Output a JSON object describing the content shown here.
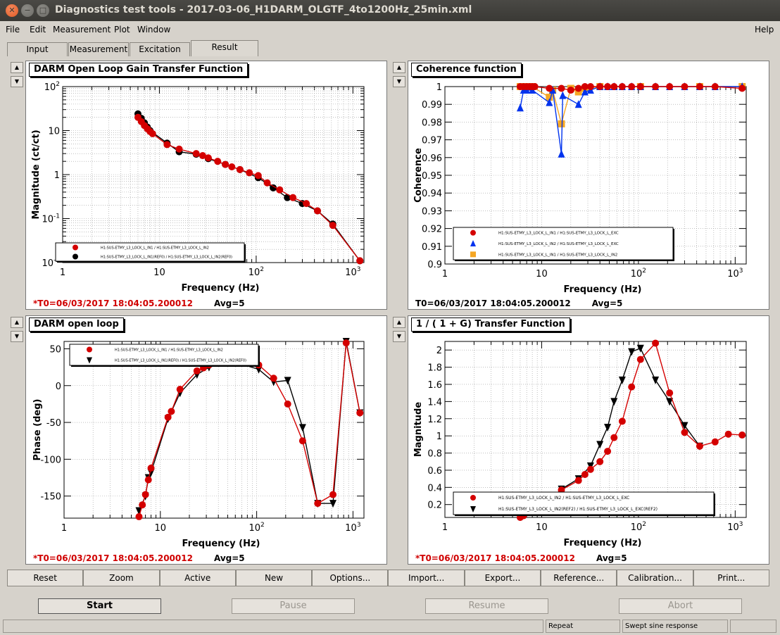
{
  "window": {
    "title": "Diagnostics test tools - 2017-03-06_H1DARM_OLGTF_4to1200Hz_25min.xml"
  },
  "menu": {
    "file": "File",
    "edit": "Edit",
    "measurement": "Measurement",
    "plot": "Plot",
    "window": "Window",
    "help": "Help"
  },
  "tabs": [
    "Input",
    "Measurement",
    "Excitation",
    "Result"
  ],
  "panels": {
    "tl": {
      "title": "DARM Open Loop Gain Transfer Function",
      "xlabel": "Frequency (Hz)",
      "ylabel": "Magnitude (ct/ct)",
      "t0": "*T0=06/03/2017 18:04:05.200012",
      "avg": "Avg=5",
      "legend": [
        "H1:SUS-ETMY_L3_LOCK_L_IN1 / H1:SUS-ETMY_L3_LOCK_L_IN2",
        "H1:SUS-ETMY_L3_LOCK_L_IN1(REF0) / H1:SUS-ETMY_L3_LOCK_L_IN2(REF0)"
      ]
    },
    "tr": {
      "title": "Coherence function",
      "xlabel": "Frequency (Hz)",
      "ylabel": "Coherence",
      "t0": "T0=06/03/2017 18:04:05.200012",
      "avg": "Avg=5",
      "legend": [
        "H1:SUS-ETMY_L3_LOCK_L_IN1 / H1:SUS-ETMY_L3_LOCK_L_EXC",
        "H1:SUS-ETMY_L3_LOCK_L_IN2 / H1:SUS-ETMY_L3_LOCK_L_EXC",
        "H1:SUS-ETMY_L3_LOCK_L_IN1 / H1:SUS-ETMY_L3_LOCK_L_IN2"
      ]
    },
    "bl": {
      "title": "DARM open loop",
      "xlabel": "Frequency (Hz)",
      "ylabel": "Phase (deg)",
      "t0": "*T0=06/03/2017 18:04:05.200012",
      "avg": "Avg=5",
      "legend": [
        "H1:SUS-ETMY_L3_LOCK_L_IN1 / H1:SUS-ETMY_L3_LOCK_L_IN2",
        "H1:SUS-ETMY_L3_LOCK_L_IN1(REF0) / H1:SUS-ETMY_L3_LOCK_L_IN2(REF0)"
      ]
    },
    "br": {
      "title": "1 / ( 1 + G) Transfer Function",
      "xlabel": "Frequency (Hz)",
      "ylabel": "Magnitude",
      "t0": "*T0=06/03/2017 18:04:05.200012",
      "avg": "Avg=5",
      "legend": [
        "H1:SUS-ETMY_L3_LOCK_L_IN2 / H1:SUS-ETMY_L3_LOCK_L_EXC",
        "H1:SUS-ETMY_L3_LOCK_L_IN2(REF2) / H1:SUS-ETMY_L3_LOCK_L_EXC(REF2)"
      ]
    }
  },
  "buttons": [
    "Reset",
    "Zoom",
    "Active",
    "New",
    "Options...",
    "Import...",
    "Export...",
    "Reference...",
    "Calibration...",
    "Print..."
  ],
  "big_buttons": [
    "Start",
    "Pause",
    "Resume",
    "Abort"
  ],
  "status": {
    "repeat": "Repeat",
    "mode": "Swept sine response"
  },
  "colors": {
    "red": "#d40000",
    "black": "#000000",
    "blue": "#0033ee",
    "orange": "#f5a623",
    "titlebar": "#3c3b37"
  },
  "chart_data": [
    {
      "id": "tl",
      "type": "scatter",
      "title": "DARM Open Loop Gain Transfer Function",
      "xlabel": "Frequency (Hz)",
      "ylabel": "Magnitude (ct/ct)",
      "xscale": "log",
      "yscale": "log",
      "xlim": [
        1,
        1300
      ],
      "ylim": [
        0.01,
        100
      ],
      "xticks": [
        [
          "1",
          "1"
        ],
        [
          "10",
          "10"
        ],
        [
          "100",
          "10^2"
        ],
        [
          "1000",
          "10^3"
        ]
      ],
      "yticks": [
        [
          "0.01",
          "10^-2"
        ],
        [
          "0.1",
          "10^-1"
        ],
        [
          "1",
          "1"
        ],
        [
          "10",
          "10"
        ],
        [
          "100",
          "10^2"
        ]
      ],
      "series": [
        {
          "name": "H1:SUS-ETMY_L3_LOCK_L_IN1 / H1:SUS-ETMY_L3_LOCK_L_IN2",
          "color": "#d40000",
          "marker": "circle",
          "x": [
            6,
            6.5,
            7,
            7.5,
            8,
            8.5,
            12,
            16,
            24,
            28,
            32,
            40,
            48,
            56,
            68,
            85,
            105,
            130,
            175,
            240,
            330,
            430,
            620,
            1180
          ],
          "y": [
            20,
            16,
            13,
            11,
            9.5,
            8.5,
            4.8,
            3.8,
            3.0,
            2.7,
            2.4,
            2.0,
            1.7,
            1.5,
            1.3,
            1.1,
            0.95,
            0.65,
            0.45,
            0.3,
            0.22,
            0.15,
            0.07,
            0.011
          ]
        },
        {
          "name": "H1:SUS-ETMY_L3_LOCK_L_IN1(REF0) / H1:SUS-ETMY_L3_LOCK_L_IN2(REF0)",
          "color": "#000000",
          "marker": "circle",
          "x": [
            6,
            6.5,
            7,
            7.5,
            8,
            12,
            16,
            24,
            32,
            48,
            68,
            105,
            150,
            210,
            300,
            430,
            620,
            1180
          ],
          "y": [
            24,
            19,
            15,
            12,
            10,
            5.2,
            3.3,
            2.9,
            2.3,
            1.7,
            1.3,
            0.85,
            0.5,
            0.3,
            0.22,
            0.15,
            0.075,
            0.011
          ]
        }
      ]
    },
    {
      "id": "tr",
      "type": "scatter",
      "title": "Coherence function",
      "xlabel": "Frequency (Hz)",
      "ylabel": "Coherence",
      "xscale": "log",
      "yscale": "linear",
      "xlim": [
        1,
        1300
      ],
      "ylim": [
        0.9,
        1.0
      ],
      "xticks": [
        [
          "1",
          "1"
        ],
        [
          "10",
          "10"
        ],
        [
          "100",
          "10^2"
        ],
        [
          "1000",
          "10^3"
        ]
      ],
      "yticks": [
        [
          "0.9",
          "0.9"
        ],
        [
          "0.91",
          "0.91"
        ],
        [
          "0.92",
          "0.92"
        ],
        [
          "0.93",
          "0.93"
        ],
        [
          "0.94",
          "0.94"
        ],
        [
          "0.95",
          "0.95"
        ],
        [
          "0.96",
          "0.96"
        ],
        [
          "0.97",
          "0.97"
        ],
        [
          "0.98",
          "0.98"
        ],
        [
          "0.99",
          "0.99"
        ],
        [
          "1",
          "1"
        ]
      ],
      "series": [
        {
          "name": "H1:SUS-ETMY_L3_LOCK_L_IN1 / H1:SUS-ETMY_L3_LOCK_L_EXC",
          "color": "#d40000",
          "marker": "circle",
          "x": [
            6,
            6.5,
            7,
            7.5,
            8,
            8.5,
            12,
            16,
            20,
            24,
            28,
            32,
            40,
            48,
            56,
            68,
            85,
            105,
            150,
            210,
            300,
            430,
            620,
            1180
          ],
          "y": [
            1,
            1,
            1,
            1,
            1,
            1,
            0.999,
            0.999,
            0.998,
            0.999,
            1,
            1,
            1,
            1,
            1,
            1,
            1,
            1,
            1,
            1,
            1,
            1,
            1,
            0.999
          ]
        },
        {
          "name": "H1:SUS-ETMY_L3_LOCK_L_IN2 / H1:SUS-ETMY_L3_LOCK_L_EXC",
          "color": "#0033ee",
          "marker": "triangle",
          "x": [
            6,
            6.5,
            7,
            8,
            12,
            13,
            16,
            16.5,
            24,
            28,
            32,
            40,
            48,
            56,
            68,
            85,
            105,
            150,
            210,
            300,
            430,
            620,
            1180
          ],
          "y": [
            0.988,
            0.998,
            0.998,
            0.998,
            0.991,
            0.998,
            0.962,
            0.995,
            0.99,
            0.997,
            0.998,
            1,
            1,
            1,
            1,
            1,
            1,
            1,
            1,
            1,
            1,
            1,
            1
          ]
        },
        {
          "name": "H1:SUS-ETMY_L3_LOCK_L_IN1 / H1:SUS-ETMY_L3_LOCK_L_IN2",
          "color": "#f5a623",
          "marker": "square",
          "x": [
            6,
            7,
            8,
            12,
            13,
            16,
            20,
            24,
            28,
            40,
            105,
            430,
            1180
          ],
          "y": [
            1,
            1,
            1,
            0.994,
            0.998,
            0.979,
            0.999,
            0.997,
            0.999,
            1,
            1,
            1,
            1
          ]
        }
      ]
    },
    {
      "id": "bl",
      "type": "line",
      "title": "DARM open loop",
      "xlabel": "Frequency (Hz)",
      "ylabel": "Phase (deg)",
      "xscale": "log",
      "yscale": "linear",
      "xlim": [
        1,
        1300
      ],
      "ylim": [
        -180,
        60
      ],
      "xticks": [
        [
          "1",
          "1"
        ],
        [
          "10",
          "10"
        ],
        [
          "100",
          "10^2"
        ],
        [
          "1000",
          "10^3"
        ]
      ],
      "yticks": [
        [
          "-150",
          "-150"
        ],
        [
          "-100",
          "-100"
        ],
        [
          "-50",
          "-50"
        ],
        [
          "0",
          "0"
        ],
        [
          "50",
          "50"
        ]
      ],
      "series": [
        {
          "name": "H1:SUS-ETMY_L3_LOCK_L_IN1 / H1:SUS-ETMY_L3_LOCK_L_IN2",
          "color": "#d40000",
          "marker": "circle",
          "x": [
            6,
            6.5,
            7,
            7.5,
            8,
            12,
            13,
            16,
            24,
            28,
            32,
            40,
            56,
            105,
            150,
            210,
            300,
            430,
            620,
            850,
            1180
          ],
          "y": [
            -178,
            -162,
            -148,
            -128,
            -112,
            -43,
            -35,
            -5,
            20,
            24,
            28,
            32,
            35,
            28,
            10,
            -25,
            -75,
            -160,
            -148,
            58,
            -37
          ]
        },
        {
          "name": "H1:SUS-ETMY_L3_LOCK_L_IN1(REF0) / H1:SUS-ETMY_L3_LOCK_L_IN2(REF0)",
          "color": "#000000",
          "marker": "triangle-down",
          "x": [
            6,
            7,
            7.5,
            8,
            12,
            16,
            24,
            32,
            56,
            105,
            150,
            210,
            300,
            430,
            620,
            850,
            1180
          ],
          "y": [
            -170,
            -150,
            -125,
            -118,
            -45,
            -10,
            15,
            25,
            33,
            22,
            5,
            7,
            -57,
            -160,
            -160,
            60,
            -37
          ]
        }
      ]
    },
    {
      "id": "br",
      "type": "line",
      "title": "1 / ( 1 + G) Transfer Function",
      "xlabel": "Frequency (Hz)",
      "ylabel": "Magnitude",
      "xscale": "log",
      "yscale": "linear",
      "xlim": [
        1,
        1300
      ],
      "ylim": [
        0.05,
        2.1
      ],
      "xticks": [
        [
          "1",
          "1"
        ],
        [
          "10",
          "10"
        ],
        [
          "100",
          "10^2"
        ],
        [
          "1000",
          "10^3"
        ]
      ],
      "yticks": [
        [
          "0.2",
          "0.2"
        ],
        [
          "0.4",
          "0.4"
        ],
        [
          "0.6",
          "0.6"
        ],
        [
          "0.8",
          "0.8"
        ],
        [
          "1",
          "1"
        ],
        [
          "1.2",
          "1.2"
        ],
        [
          "1.4",
          "1.4"
        ],
        [
          "1.6",
          "1.6"
        ],
        [
          "1.8",
          "1.8"
        ],
        [
          "2",
          "2"
        ]
      ],
      "series": [
        {
          "name": "H1:SUS-ETMY_L3_LOCK_L_IN2 / H1:SUS-ETMY_L3_LOCK_L_EXC",
          "color": "#d40000",
          "marker": "circle",
          "x": [
            6,
            6.5,
            16,
            24,
            28,
            32,
            40,
            48,
            56,
            68,
            85,
            105,
            150,
            210,
            300,
            430,
            620,
            850,
            1180
          ],
          "y": [
            0.05,
            0.07,
            0.37,
            0.48,
            0.55,
            0.61,
            0.7,
            0.82,
            0.98,
            1.17,
            1.57,
            1.89,
            2.08,
            1.5,
            1.04,
            0.88,
            0.93,
            1.02,
            1.01
          ]
        },
        {
          "name": "H1:SUS-ETMY_L3_LOCK_L_IN2(REF2) / H1:SUS-ETMY_L3_LOCK_L_EXC(REF2)",
          "color": "#000000",
          "marker": "triangle-down",
          "x": [
            16,
            24,
            32,
            40,
            48,
            56,
            68,
            85,
            105,
            150,
            210,
            300,
            430
          ],
          "y": [
            0.38,
            0.5,
            0.65,
            0.9,
            1.1,
            1.4,
            1.65,
            1.98,
            2.02,
            1.65,
            1.4,
            1.12,
            0.88
          ]
        }
      ]
    }
  ]
}
